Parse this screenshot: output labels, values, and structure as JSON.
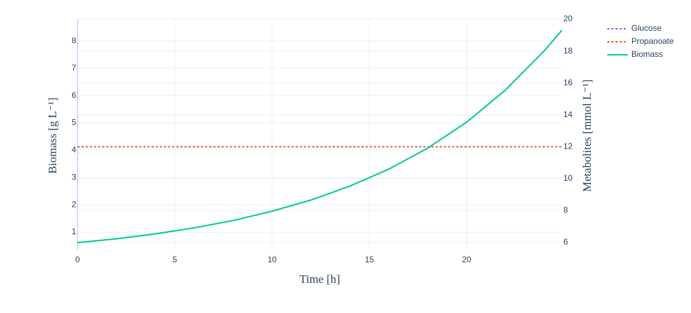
{
  "chart_data": {
    "type": "line",
    "x_label": "Time [h]",
    "y_label": "Biomass [g L⁻¹]",
    "y2_label": "Metabolites [mmol L⁻¹]",
    "x": [
      0,
      2,
      4,
      6,
      8,
      10,
      12,
      14,
      16,
      18,
      20,
      22,
      24,
      24.9
    ],
    "series": [
      {
        "name": "Glucose",
        "color": "#636efa",
        "dash": "dot",
        "axis": "y2",
        "values": [
          5.99,
          6.23,
          6.54,
          6.92,
          7.38,
          7.96,
          8.66,
          9.54,
          10.6,
          11.92,
          13.54,
          15.56,
          18.03,
          19.32
        ]
      },
      {
        "name": "Propanoate",
        "color": "#ef553b",
        "dash": "dot",
        "axis": "y2",
        "values": [
          12,
          12,
          12,
          12,
          12,
          12,
          12,
          12,
          12,
          12,
          12,
          12,
          12,
          12
        ]
      },
      {
        "name": "Biomass",
        "color": "#00cc96",
        "dash": "solid",
        "axis": "y",
        "values": [
          0.62,
          0.76,
          0.94,
          1.16,
          1.43,
          1.77,
          2.18,
          2.69,
          3.31,
          4.08,
          5.03,
          6.21,
          7.65,
          8.4
        ]
      }
    ],
    "xlim": [
      0,
      24.9
    ],
    "xticks": [
      0,
      5,
      10,
      15,
      20
    ],
    "ylim": [
      0.35,
      8.8
    ],
    "yticks": [
      1,
      2,
      3,
      4,
      5,
      6,
      7,
      8
    ],
    "y2lim": [
      5.53,
      20
    ],
    "y2ticks": [
      6,
      8,
      10,
      12,
      14,
      16,
      18,
      20
    ],
    "grid": true,
    "legend": "top-right"
  }
}
